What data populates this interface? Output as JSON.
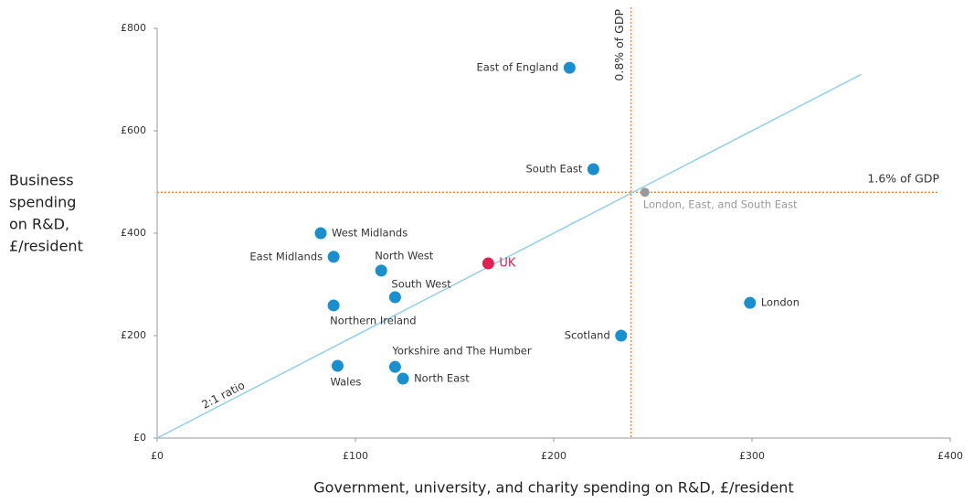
{
  "chart_data": {
    "type": "scatter",
    "x_label": "Government, university, and charity spending on R&D, £/resident",
    "y_label": [
      "Business",
      "spending",
      "on R&D,",
      "£/resident"
    ],
    "xlim": [
      0,
      400
    ],
    "ylim": [
      0,
      800
    ],
    "xticks": [
      {
        "value": 0,
        "label": "£0"
      },
      {
        "value": 100,
        "label": "£100"
      },
      {
        "value": 200,
        "label": "£200"
      },
      {
        "value": 300,
        "label": "£300"
      },
      {
        "value": 400,
        "label": "£400"
      }
    ],
    "yticks": [
      {
        "value": 0,
        "label": "£0"
      },
      {
        "value": 200,
        "label": "£200"
      },
      {
        "value": 400,
        "label": "£400"
      },
      {
        "value": 600,
        "label": "£600"
      },
      {
        "value": 800,
        "label": "£800"
      }
    ],
    "points": [
      {
        "name": "East of England",
        "x": 208,
        "y": 723,
        "color": "#1a8fd0"
      },
      {
        "name": "South East",
        "x": 220,
        "y": 525,
        "color": "#1a8fd0"
      },
      {
        "name": "West Midlands",
        "x": 82.5,
        "y": 400,
        "color": "#1a8fd0"
      },
      {
        "name": "East Midlands",
        "x": 89,
        "y": 354,
        "color": "#1a8fd0"
      },
      {
        "name": "North West",
        "x": 113,
        "y": 327,
        "color": "#1a8fd0"
      },
      {
        "name": "UK",
        "x": 167,
        "y": 341,
        "color": "#e0204f"
      },
      {
        "name": "South West",
        "x": 120,
        "y": 275,
        "color": "#1a8fd0"
      },
      {
        "name": "Northern Ireland",
        "x": 89,
        "y": 259,
        "color": "#1a8fd0"
      },
      {
        "name": "London",
        "x": 299,
        "y": 264,
        "color": "#1a8fd0"
      },
      {
        "name": "Scotland",
        "x": 234,
        "y": 200,
        "color": "#1a8fd0"
      },
      {
        "name": "Yorkshire and The Humber",
        "x": 120,
        "y": 139,
        "color": "#1a8fd0"
      },
      {
        "name": "Wales",
        "x": 91,
        "y": 141,
        "color": "#1a8fd0"
      },
      {
        "name": "North East",
        "x": 124,
        "y": 116,
        "color": "#1a8fd0"
      },
      {
        "name": "London, East, and South East",
        "x": 246,
        "y": 480,
        "color": "#999999"
      }
    ],
    "reference_lines": [
      {
        "label": "1.6% of GDP",
        "axis": "y",
        "value": 480,
        "color": "#f08a3c"
      },
      {
        "label": "0.8% of GDP",
        "axis": "x",
        "value": 239,
        "color": "#f08a3c"
      }
    ],
    "ratio_line": {
      "label": "2:1 ratio",
      "x": [
        0,
        355
      ],
      "y": [
        0,
        710
      ],
      "color": "#8fd0e8"
    }
  }
}
